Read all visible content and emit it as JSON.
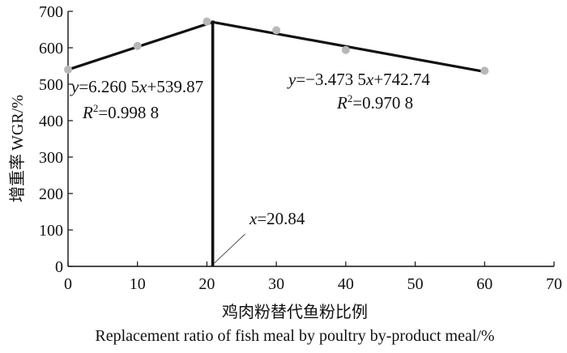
{
  "chart_data": {
    "type": "scatter",
    "title": "",
    "xlabel_cn": "鸡肉粉替代鱼粉比例",
    "xlabel_en": "Replacement ratio of fish meal by poultry by-product meal/%",
    "ylabel_cn": "增重率",
    "ylabel_en": "WGR/%",
    "xlim": [
      0,
      70
    ],
    "ylim": [
      0,
      700
    ],
    "xticks": [
      0,
      10,
      20,
      30,
      40,
      50,
      60,
      70
    ],
    "yticks": [
      0,
      100,
      200,
      300,
      400,
      500,
      600,
      700
    ],
    "grid": false,
    "points": {
      "x": [
        0,
        10,
        20,
        30,
        40,
        60
      ],
      "y": [
        540,
        605,
        672,
        648,
        594,
        537
      ]
    },
    "fits": [
      {
        "eq_prefix": "y",
        "eq_body": "=6.260 5",
        "eq_var": "x",
        "eq_tail": "+539.87",
        "r2_prefix": "R",
        "r2_sup": "2",
        "r2_value": "=0.998 8",
        "slope": 6.2605,
        "intercept": 539.87,
        "x_range": [
          0,
          20.84
        ]
      },
      {
        "eq_prefix": "y",
        "eq_body": "=−3.473 5",
        "eq_var": "x",
        "eq_tail": "+742.74",
        "r2_prefix": "R",
        "r2_sup": "2",
        "r2_value": "=0.970 8",
        "slope": -3.4735,
        "intercept": 742.74,
        "x_range": [
          20.84,
          60
        ]
      }
    ],
    "breakpoint": {
      "x": 20.84,
      "label_var": "x",
      "label_value": "=20.84"
    }
  }
}
